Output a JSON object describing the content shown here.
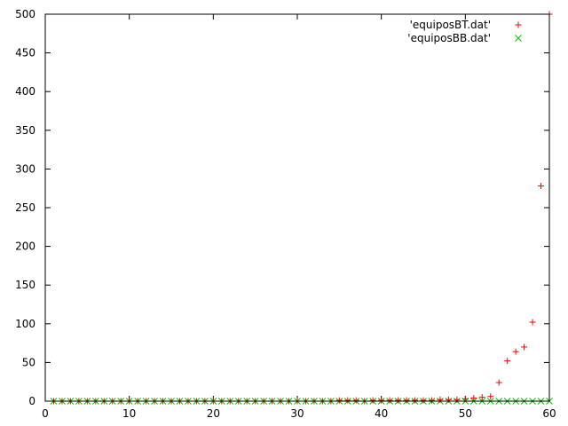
{
  "chart_data": {
    "type": "scatter",
    "title": "",
    "xlabel": "",
    "ylabel": "",
    "xlim": [
      0,
      60
    ],
    "ylim": [
      0,
      500
    ],
    "xticks": [
      0,
      10,
      20,
      30,
      40,
      50,
      60
    ],
    "yticks": [
      0,
      50,
      100,
      150,
      200,
      250,
      300,
      350,
      400,
      450,
      500
    ],
    "grid": false,
    "legend_position": "top-right",
    "series": [
      {
        "name": "'equiposBT.dat'",
        "marker": "plus",
        "color": "#ff0000",
        "x": [
          1,
          2,
          3,
          4,
          5,
          6,
          7,
          8,
          9,
          10,
          11,
          12,
          13,
          14,
          15,
          16,
          17,
          18,
          19,
          20,
          21,
          22,
          23,
          24,
          25,
          26,
          27,
          28,
          29,
          30,
          31,
          32,
          33,
          34,
          35,
          36,
          37,
          38,
          39,
          40,
          41,
          42,
          43,
          44,
          45,
          46,
          47,
          48,
          49,
          50,
          51,
          52,
          53,
          54,
          55,
          56,
          57,
          58,
          59,
          60
        ],
        "y": [
          0,
          0,
          0,
          0,
          0,
          0,
          0,
          0,
          0,
          0,
          0,
          0,
          0,
          0,
          0,
          0,
          0,
          0,
          0,
          0,
          0,
          0,
          0,
          0,
          0,
          0,
          0,
          0,
          0,
          0,
          0,
          0,
          0,
          0,
          1,
          1,
          1,
          0,
          1,
          1,
          1,
          1,
          1,
          1,
          1,
          1,
          2,
          2,
          2,
          3,
          4,
          5,
          6,
          24,
          52,
          64,
          70,
          102,
          278,
          500
        ]
      },
      {
        "name": "'equiposBB.dat'",
        "marker": "cross",
        "color": "#00c000",
        "x": [
          1,
          2,
          3,
          4,
          5,
          6,
          7,
          8,
          9,
          10,
          11,
          12,
          13,
          14,
          15,
          16,
          17,
          18,
          19,
          20,
          21,
          22,
          23,
          24,
          25,
          26,
          27,
          28,
          29,
          30,
          31,
          32,
          33,
          34,
          35,
          36,
          37,
          38,
          39,
          40,
          41,
          42,
          43,
          44,
          45,
          46,
          47,
          48,
          49,
          50,
          51,
          52,
          53,
          54,
          55,
          56,
          57,
          58,
          59,
          60
        ],
        "y": [
          0,
          0,
          0,
          0,
          0,
          0,
          0,
          0,
          0,
          0,
          0,
          0,
          0,
          0,
          0,
          0,
          0,
          0,
          0,
          0,
          0,
          0,
          0,
          0,
          0,
          0,
          0,
          0,
          0,
          0,
          0,
          0,
          0,
          0,
          0,
          0,
          0,
          0,
          0,
          0,
          0,
          0,
          0,
          0,
          0,
          0,
          0,
          0,
          0,
          0,
          0,
          0,
          0,
          0,
          0,
          0,
          0,
          0,
          0,
          0
        ]
      }
    ]
  }
}
